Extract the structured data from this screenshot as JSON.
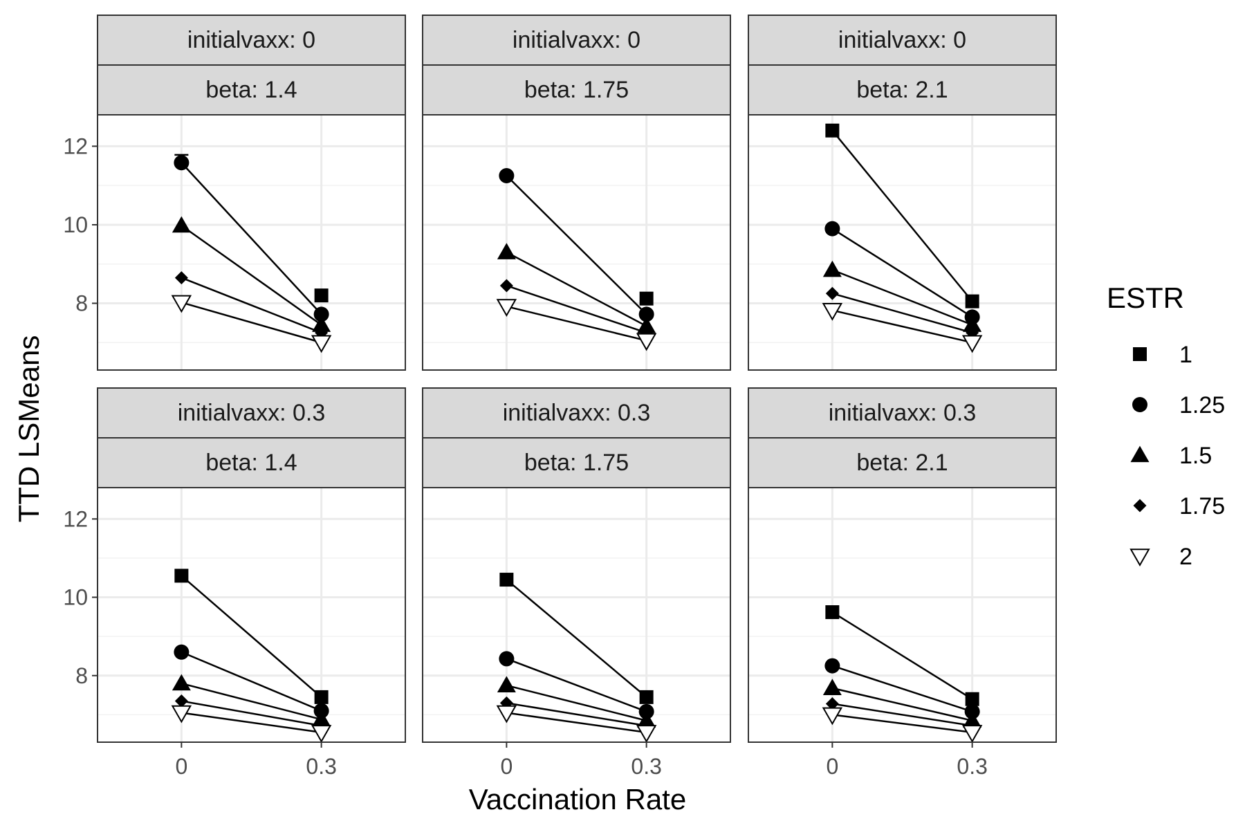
{
  "chart_data": {
    "type": "line",
    "xlabel": "Vaccination Rate",
    "ylabel": "TTD LSMeans",
    "x": [
      0,
      0.3
    ],
    "x_tick_labels": [
      "0",
      "0.3"
    ],
    "xlim": [
      -0.18,
      0.48
    ],
    "ylim": [
      6.3,
      12.8
    ],
    "y_ticks": [
      8,
      10,
      12
    ],
    "y_tick_labels": [
      "8",
      "10",
      "12"
    ],
    "grid": true,
    "legend": {
      "title": "ESTR",
      "position": "right",
      "entries": [
        {
          "label": "1",
          "shape": "square"
        },
        {
          "label": "1.25",
          "shape": "circle"
        },
        {
          "label": "1.5",
          "shape": "triangle"
        },
        {
          "label": "1.75",
          "shape": "diamond"
        },
        {
          "label": "2",
          "shape": "triangle-down-open"
        }
      ]
    },
    "panels": [
      {
        "row": 0,
        "col": 0,
        "strip_top": "initialvaxx: 0",
        "strip_bottom": "beta: 1.4",
        "series": [
          {
            "name": "1",
            "values": [
              null,
              8.2
            ]
          },
          {
            "name": "1.25",
            "values": [
              11.58,
              7.72
            ]
          },
          {
            "name": "1.5",
            "values": [
              9.98,
              7.45
            ]
          },
          {
            "name": "1.75",
            "values": [
              8.65,
              7.25
            ]
          },
          {
            "name": "2",
            "values": [
              8.02,
              7.0
            ]
          }
        ]
      },
      {
        "row": 0,
        "col": 1,
        "strip_top": "initialvaxx: 0",
        "strip_bottom": "beta: 1.75",
        "series": [
          {
            "name": "1",
            "values": [
              null,
              8.12
            ]
          },
          {
            "name": "1.25",
            "values": [
              11.25,
              7.72
            ]
          },
          {
            "name": "1.5",
            "values": [
              9.3,
              7.42
            ]
          },
          {
            "name": "1.75",
            "values": [
              8.45,
              7.25
            ]
          },
          {
            "name": "2",
            "values": [
              7.92,
              7.05
            ]
          }
        ]
      },
      {
        "row": 0,
        "col": 2,
        "strip_top": "initialvaxx: 0",
        "strip_bottom": "beta: 2.1",
        "series": [
          {
            "name": "1",
            "values": [
              12.4,
              8.05
            ]
          },
          {
            "name": "1.25",
            "values": [
              9.9,
              7.65
            ]
          },
          {
            "name": "1.5",
            "values": [
              8.85,
              7.45
            ]
          },
          {
            "name": "1.75",
            "values": [
              8.25,
              7.25
            ]
          },
          {
            "name": "2",
            "values": [
              7.82,
              7.0
            ]
          }
        ]
      },
      {
        "row": 1,
        "col": 0,
        "strip_top": "initialvaxx: 0.3",
        "strip_bottom": "beta: 1.4",
        "series": [
          {
            "name": "1",
            "values": [
              10.55,
              7.45
            ]
          },
          {
            "name": "1.25",
            "values": [
              8.6,
              7.1
            ]
          },
          {
            "name": "1.5",
            "values": [
              7.8,
              6.88
            ]
          },
          {
            "name": "1.75",
            "values": [
              7.35,
              6.72
            ]
          },
          {
            "name": "2",
            "values": [
              7.05,
              6.55
            ]
          }
        ]
      },
      {
        "row": 1,
        "col": 1,
        "strip_top": "initialvaxx: 0.3",
        "strip_bottom": "beta: 1.75",
        "series": [
          {
            "name": "1",
            "values": [
              10.45,
              7.45
            ]
          },
          {
            "name": "1.25",
            "values": [
              8.43,
              7.08
            ]
          },
          {
            "name": "1.5",
            "values": [
              7.75,
              6.85
            ]
          },
          {
            "name": "1.75",
            "values": [
              7.3,
              6.72
            ]
          },
          {
            "name": "2",
            "values": [
              7.05,
              6.55
            ]
          }
        ]
      },
      {
        "row": 1,
        "col": 2,
        "strip_top": "initialvaxx: 0.3",
        "strip_bottom": "beta: 2.1",
        "series": [
          {
            "name": "1",
            "values": [
              9.62,
              7.4
            ]
          },
          {
            "name": "1.25",
            "values": [
              8.25,
              7.08
            ]
          },
          {
            "name": "1.5",
            "values": [
              7.68,
              6.85
            ]
          },
          {
            "name": "1.75",
            "values": [
              7.28,
              6.72
            ]
          },
          {
            "name": "2",
            "values": [
              7.0,
              6.55
            ]
          }
        ]
      }
    ]
  }
}
